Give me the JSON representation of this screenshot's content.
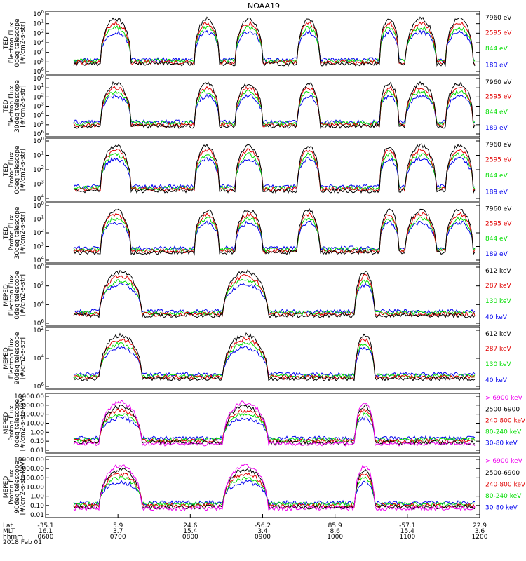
{
  "title": "NOAA19",
  "colors": {
    "black": "#000000",
    "red": "#e00000",
    "green": "#00dd00",
    "blue": "#0000ee",
    "magenta": "#ee00ee"
  },
  "chart_data": [
    {
      "type": "line",
      "ylabel": [
        "TED",
        "Electron Flux",
        "0deg telescope",
        "[#/cm2-s-str]"
      ],
      "ytick_labels": [
        "10^0",
        "10^1",
        "10^2",
        "10^3",
        "10^4",
        "10^5",
        "10^6"
      ],
      "ylim": [
        1,
        1000000
      ],
      "yscale": "log",
      "legend": [
        {
          "label": "7960 eV",
          "color": "black"
        },
        {
          "label": "2595 eV",
          "color": "red"
        },
        {
          "label": "844 eV",
          "color": "green"
        },
        {
          "label": "189 eV",
          "color": "blue"
        }
      ]
    },
    {
      "type": "line",
      "ylabel": [
        "TED",
        "Electron Flux",
        "30deg telescope",
        "[#/cm2-s-str]"
      ],
      "ytick_labels": [
        "10^0",
        "10^1",
        "10^2",
        "10^3",
        "10^4",
        "10^5",
        "10^6"
      ],
      "ylim": [
        1,
        1000000
      ],
      "yscale": "log",
      "legend": [
        {
          "label": "7960 eV",
          "color": "black"
        },
        {
          "label": "2595 eV",
          "color": "red"
        },
        {
          "label": "844 eV",
          "color": "green"
        },
        {
          "label": "189 eV",
          "color": "blue"
        }
      ]
    },
    {
      "type": "line",
      "ylabel": [
        "TED",
        "Proton Flux",
        "0deg telescope",
        "[#/cm2-s-str]"
      ],
      "ytick_labels": [
        "10^0",
        "10^1",
        "10^2",
        "10^3",
        "10^4"
      ],
      "ylim": [
        1,
        30000
      ],
      "yscale": "log",
      "legend": [
        {
          "label": "7960 eV",
          "color": "black"
        },
        {
          "label": "2595 eV",
          "color": "red"
        },
        {
          "label": "844 eV",
          "color": "green"
        },
        {
          "label": "189 eV",
          "color": "blue"
        }
      ]
    },
    {
      "type": "line",
      "ylabel": [
        "TED",
        "Proton Flux",
        "30deg telescope",
        "[#/cm2-s-str]"
      ],
      "ytick_labels": [
        "10^0",
        "10^1",
        "10^2",
        "10^3",
        "10^4"
      ],
      "ylim": [
        1,
        30000
      ],
      "yscale": "log",
      "legend": [
        {
          "label": "7960 eV",
          "color": "black"
        },
        {
          "label": "2595 eV",
          "color": "red"
        },
        {
          "label": "844 eV",
          "color": "green"
        },
        {
          "label": "189 eV",
          "color": "blue"
        }
      ]
    },
    {
      "type": "line",
      "ylabel": [
        "MEPED",
        "Electron Flux",
        "0deg telescope",
        "[#/cm2-s-str]"
      ],
      "ytick_labels": [
        "10^0",
        "10^2",
        "10^4",
        "10^6"
      ],
      "ylim": [
        1,
        10000000
      ],
      "yscale": "log",
      "legend": [
        {
          "label": "612 keV",
          "color": "black"
        },
        {
          "label": "287 keV",
          "color": "red"
        },
        {
          "label": "130 keV",
          "color": "green"
        },
        {
          "label": "40 keV",
          "color": "blue"
        }
      ]
    },
    {
      "type": "line",
      "ylabel": [
        "MEPED",
        "Electron Flux",
        "90deg telescope",
        "[#/cm2-s-str]"
      ],
      "ytick_labels": [
        "10^2",
        "10^4",
        "10^6"
      ],
      "ylim": [
        50,
        10000000
      ],
      "yscale": "log",
      "legend": [
        {
          "label": "612 keV",
          "color": "black"
        },
        {
          "label": "287 keV",
          "color": "red"
        },
        {
          "label": "130 keV",
          "color": "green"
        },
        {
          "label": "40 keV",
          "color": "blue"
        }
      ]
    },
    {
      "type": "line",
      "ylabel": [
        "MEPED",
        "Proton Flux",
        "0deg telescope",
        "[#/cm2-s-str-keV]"
      ],
      "ytick_labels": [
        "10000.00",
        "1000.00",
        "100.00",
        "10.00",
        "1.00",
        "0.10",
        "0.01"
      ],
      "ylim": [
        0.01,
        10000
      ],
      "yscale": "log",
      "legend": [
        {
          "label": "> 6900 keV",
          "color": "magenta"
        },
        {
          "label": "2500-6900",
          "color": "black"
        },
        {
          "label": "240-800 keV",
          "color": "red"
        },
        {
          "label": "80-240 keV",
          "color": "green"
        },
        {
          "label": "30-80 keV",
          "color": "blue"
        }
      ]
    },
    {
      "type": "line",
      "ylabel": [
        "MEPED",
        "Proton Flux",
        "90deg telescope",
        "[#/cm2-s-str-keV]"
      ],
      "ytick_labels": [
        "10000.00",
        "1000.00",
        "100.00",
        "10.00",
        "1.00",
        "0.10",
        "0.01"
      ],
      "ylim": [
        0.01,
        10000
      ],
      "yscale": "log",
      "legend": [
        {
          "label": "> 6900 keV",
          "color": "magenta"
        },
        {
          "label": "2500-6900",
          "color": "black"
        },
        {
          "label": "240-800 keV",
          "color": "red"
        },
        {
          "label": "80-240 keV",
          "color": "green"
        },
        {
          "label": "30-80 keV",
          "color": "blue"
        }
      ]
    }
  ],
  "x_axis": {
    "row_labels": [
      "Lat",
      "MLT",
      "hhmm",
      "2018 Feb 01"
    ],
    "ticks": [
      {
        "lat": "-35.1",
        "mlt": "16.1",
        "hhmm": "0600"
      },
      {
        "lat": "5.9",
        "mlt": "3.7",
        "hhmm": "0700"
      },
      {
        "lat": "24.6",
        "mlt": "15.4",
        "hhmm": "0800"
      },
      {
        "lat": "-56.2",
        "mlt": "3.4",
        "hhmm": "0900"
      },
      {
        "lat": "85.9",
        "mlt": "8.6",
        "hhmm": "1000"
      },
      {
        "lat": "-57.1",
        "mlt": "15.4",
        "hhmm": "1100"
      },
      {
        "lat": "22.9",
        "mlt": "3.6",
        "hhmm": "1200"
      }
    ]
  }
}
